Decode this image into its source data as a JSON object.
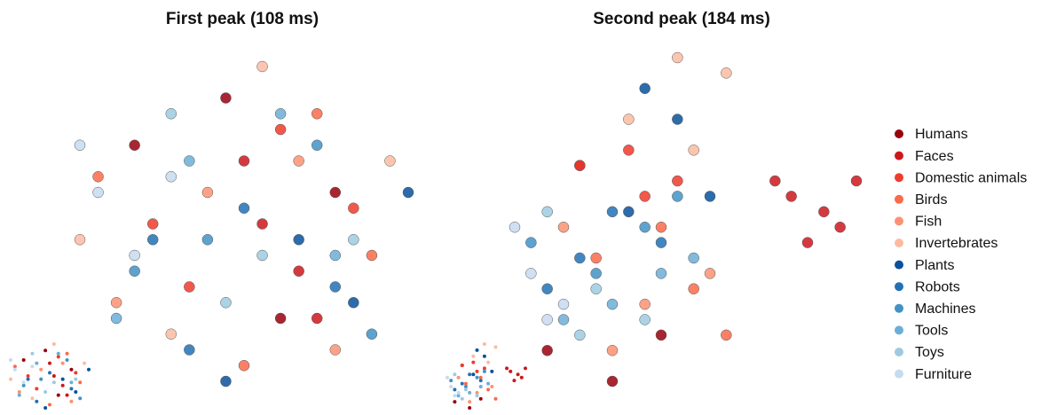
{
  "chart_data": [
    {
      "type": "scatter",
      "title": "First peak (108 ms)",
      "series": [
        {
          "x": [
            -0.6,
            0.2,
            0.5,
            -0.1
          ],
          "y": [
            0.6,
            -0.5,
            0.3,
            0.9
          ]
        },
        {
          "x": [
            0.1,
            0.3,
            0.0,
            0.4
          ],
          "y": [
            0.1,
            -0.2,
            0.5,
            -0.5
          ]
        },
        {
          "x": [
            -0.3,
            0.6,
            0.2,
            -0.5
          ],
          "y": [
            -0.3,
            0.2,
            0.7,
            0.1
          ]
        },
        {
          "x": [
            0.7,
            -0.8,
            0.0,
            0.4
          ],
          "y": [
            -0.1,
            0.4,
            -0.8,
            0.8
          ]
        },
        {
          "x": [
            -0.2,
            0.5,
            -0.7,
            0.3
          ],
          "y": [
            0.3,
            -0.7,
            -0.4,
            0.5
          ]
        },
        {
          "x": [
            0.8,
            -0.4,
            0.1,
            -0.9
          ],
          "y": [
            0.5,
            -0.6,
            1.1,
            0.0
          ]
        },
        {
          "x": [
            0.6,
            -0.1,
            0.3,
            0.9
          ],
          "y": [
            -0.4,
            -0.9,
            0.0,
            0.3
          ]
        },
        {
          "x": [
            -0.5,
            0.0,
            0.5,
            -0.3
          ],
          "y": [
            0.0,
            0.2,
            -0.3,
            -0.7
          ]
        },
        {
          "x": [
            0.4,
            -0.2,
            0.7,
            -0.6
          ],
          "y": [
            0.6,
            0.0,
            -0.6,
            -0.2
          ]
        },
        {
          "x": [
            -0.7,
            0.2,
            -0.3,
            0.5
          ],
          "y": [
            -0.5,
            0.8,
            0.5,
            -0.1
          ]
        },
        {
          "x": [
            -0.1,
            0.6,
            -0.4,
            0.1
          ],
          "y": [
            -0.4,
            0.0,
            0.8,
            -0.1
          ]
        },
        {
          "x": [
            -0.8,
            -0.6,
            -0.9,
            -0.4
          ],
          "y": [
            0.3,
            -0.1,
            0.6,
            0.4
          ]
        }
      ]
    },
    {
      "type": "scatter",
      "title": "Second peak (184 ms)",
      "series": [
        {
          "x": [
            -0.6,
            -0.2,
            0.1,
            -0.4
          ],
          "y": [
            -0.6,
            -0.8,
            -0.5,
            0.6
          ]
        },
        {
          "x": [
            0.9,
            1.1,
            1.3,
            1.0,
            1.2,
            0.8
          ],
          "y": [
            0.4,
            0.3,
            0.5,
            0.1,
            0.2,
            0.5
          ]
        },
        {
          "x": [
            -0.1,
            0.2,
            0.0,
            -0.4
          ],
          "y": [
            0.7,
            0.5,
            0.4,
            0.6
          ]
        },
        {
          "x": [
            0.3,
            -0.3,
            0.5,
            0.1
          ],
          "y": [
            -0.2,
            0.0,
            -0.5,
            0.2
          ]
        },
        {
          "x": [
            -0.5,
            0.0,
            0.4,
            -0.2
          ],
          "y": [
            0.2,
            -0.3,
            -0.1,
            -0.6
          ]
        },
        {
          "x": [
            0.2,
            0.5,
            -0.1,
            0.3
          ],
          "y": [
            1.3,
            1.2,
            0.9,
            0.7
          ]
        },
        {
          "x": [
            0.0,
            0.2,
            -0.1,
            0.4
          ],
          "y": [
            1.1,
            0.9,
            0.3,
            0.4
          ]
        },
        {
          "x": [
            -0.4,
            -0.2,
            0.1,
            -0.6
          ],
          "y": [
            0.0,
            0.3,
            0.1,
            -0.2
          ]
        },
        {
          "x": [
            -0.3,
            0.0,
            -0.7,
            0.2
          ],
          "y": [
            -0.1,
            0.2,
            0.1,
            0.4
          ]
        },
        {
          "x": [
            -0.2,
            0.1,
            -0.5,
            0.3
          ],
          "y": [
            -0.3,
            -0.1,
            -0.4,
            0.0
          ]
        },
        {
          "x": [
            -0.6,
            -0.3,
            0.0,
            -0.4
          ],
          "y": [
            0.3,
            -0.2,
            -0.4,
            -0.5
          ]
        },
        {
          "x": [
            -0.7,
            -0.5,
            -0.8,
            -0.6
          ],
          "y": [
            -0.1,
            -0.3,
            0.2,
            -0.4
          ]
        }
      ]
    }
  ],
  "legend": {
    "names": [
      "Humans",
      "Faces",
      "Domestic animals",
      "Birds",
      "Fish",
      "Invertebrates",
      "Plants",
      "Robots",
      "Machines",
      "Tools",
      "Toys",
      "Furniture"
    ],
    "colors": [
      "#99000d",
      "#cb181d",
      "#ef3b2c",
      "#fb6a4a",
      "#fc9272",
      "#fcbba1",
      "#08519c",
      "#2171b5",
      "#4292c6",
      "#6baed6",
      "#9ecae1",
      "#c6dbef"
    ]
  }
}
